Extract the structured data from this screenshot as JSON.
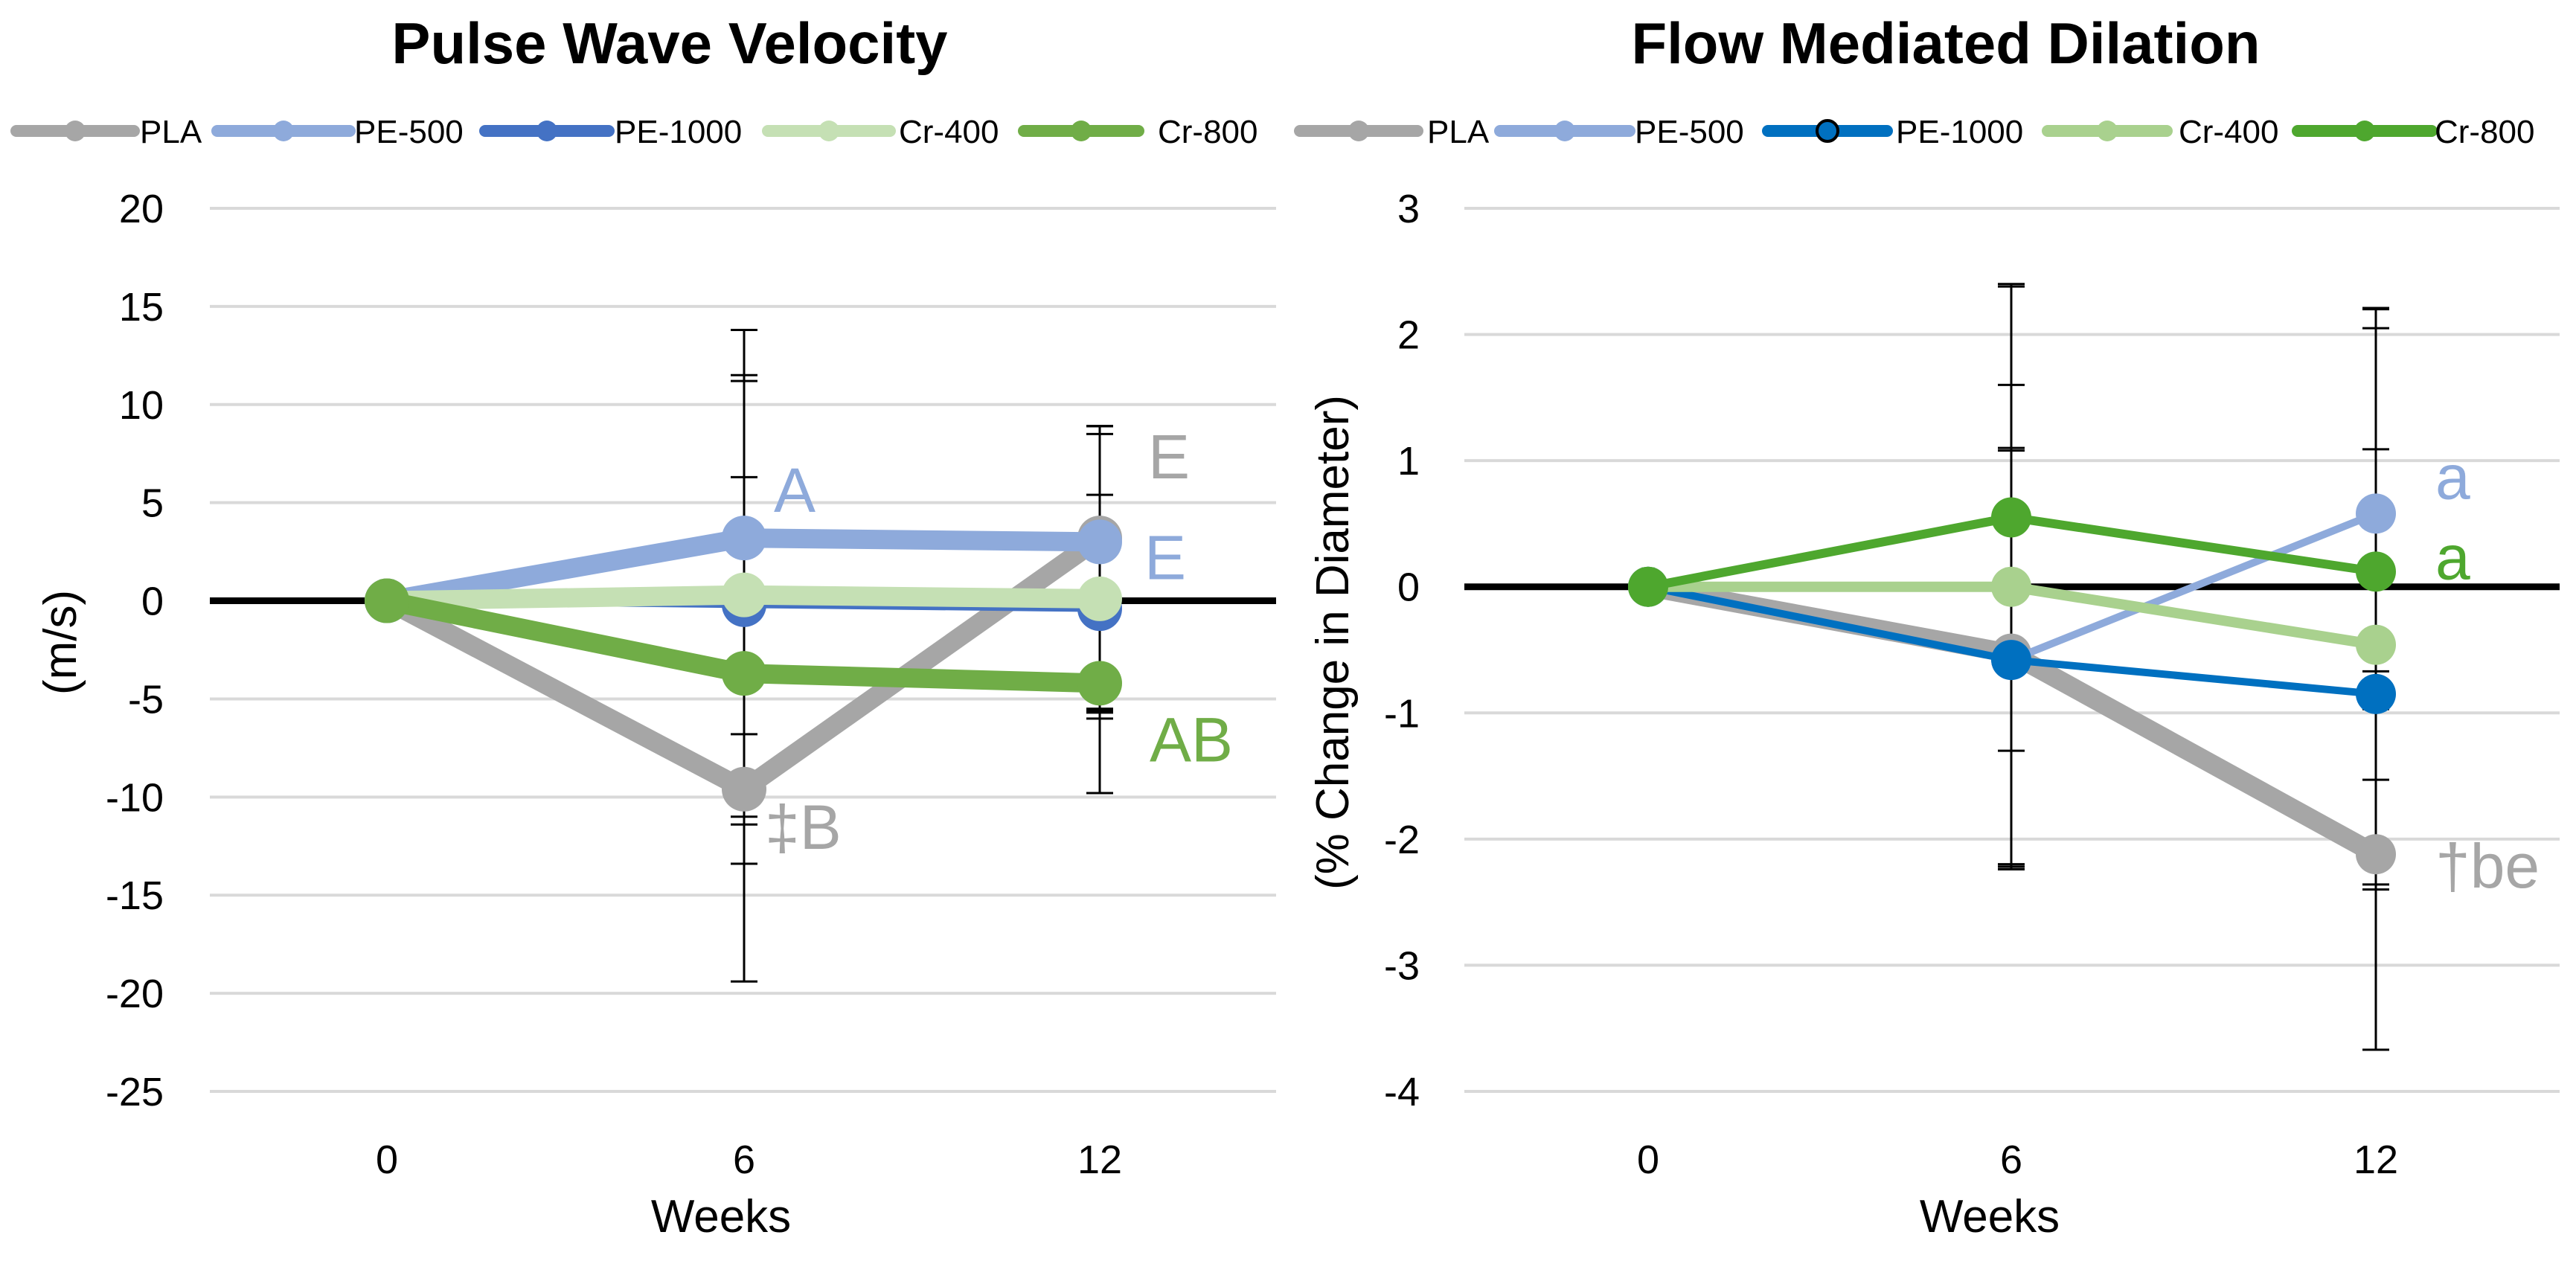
{
  "chart_data": [
    {
      "type": "line",
      "title": "Pulse Wave Velocity",
      "xlabel": "Weeks",
      "ylabel": "(m/s)",
      "categories": [
        "0",
        "6",
        "12"
      ],
      "ylim": [
        -25,
        20
      ],
      "yticks": [
        20,
        15,
        10,
        5,
        0,
        -5,
        -10,
        -15,
        -20,
        -25
      ],
      "grid": true,
      "legend_position": "top",
      "series": [
        {
          "name": "PLA",
          "color": "#a6a6a6",
          "values": [
            0,
            -9.6,
            3.2
          ],
          "err_up": [
            0,
            9.6,
            5.7
          ],
          "err_down": [
            0,
            9.8,
            8.9
          ]
        },
        {
          "name": "PE-500",
          "color": "#8eaadb",
          "values": [
            0,
            3.2,
            3.0
          ],
          "err_up": [
            0,
            10.6,
            5.5
          ],
          "err_down": [
            0,
            10.0,
            8.5
          ]
        },
        {
          "name": "PE-1000",
          "color": "#4472c4",
          "values": [
            0,
            -0.2,
            -0.4
          ],
          "err_up": [
            0,
            11.4,
            9.3
          ],
          "err_down": [
            0,
            11.2,
            5.6
          ]
        },
        {
          "name": "Cr-400",
          "color": "#c5e0b4",
          "values": [
            0,
            0.3,
            0.1
          ],
          "err_up": [
            0,
            11.2,
            8.8
          ],
          "err_down": [
            0,
            11.3,
            5.7
          ]
        },
        {
          "name": "Cr-800",
          "color": "#70ad47",
          "values": [
            0,
            -3.7,
            -4.2
          ],
          "err_up": [
            0,
            10.0,
            9.6
          ],
          "err_down": [
            0,
            9.7,
            5.6
          ]
        }
      ],
      "annotations": [
        {
          "text": "A",
          "series": "PE-500",
          "color": "#8eaadb"
        },
        {
          "text": "‡B",
          "series": "PLA",
          "color": "#a6a6a6"
        },
        {
          "text": "E",
          "series": "PLA",
          "color": "#a6a6a6"
        },
        {
          "text": "E",
          "series": "PE-500",
          "color": "#8eaadb"
        },
        {
          "text": "AB",
          "series": "Cr-800",
          "color": "#70ad47"
        }
      ]
    },
    {
      "type": "line",
      "title": "Flow Mediated Dilation",
      "xlabel": "Weeks",
      "ylabel": "(% Change in Diameter)",
      "categories": [
        "0",
        "6",
        "12"
      ],
      "ylim": [
        -4,
        3
      ],
      "yticks": [
        3,
        2,
        1,
        0,
        -1,
        -2,
        -3,
        -4
      ],
      "grid": true,
      "legend_position": "top",
      "series": [
        {
          "name": "PLA",
          "color": "#a6a6a6",
          "values": [
            0,
            -0.53,
            -2.12
          ],
          "err_up": [
            0,
            1.63,
            1.45
          ],
          "err_down": [
            0,
            1.67,
            1.55
          ]
        },
        {
          "name": "PE-500",
          "color": "#8eaadb",
          "values": [
            0,
            -0.58,
            0.58
          ],
          "err_up": [
            0,
            1.66,
            1.63
          ],
          "err_down": [
            0,
            1.64,
            1.55
          ]
        },
        {
          "name": "PE-1000",
          "color": "#0070c0",
          "values": [
            0,
            -0.58,
            -0.85
          ],
          "err_up": [
            0,
            2.96,
            3.05
          ],
          "err_down": [
            0,
            1.66,
            1.55
          ]
        },
        {
          "name": "Cr-400",
          "color": "#a9d18e",
          "values": [
            0,
            0.0,
            -0.46
          ],
          "err_up": [
            0,
            1.6,
            1.55
          ],
          "err_down": [
            0,
            2.2,
            1.9
          ]
        },
        {
          "name": "Cr-800",
          "color": "#4ea72e",
          "values": [
            0,
            0.55,
            0.12
          ],
          "err_up": [
            0,
            1.85,
            1.93
          ],
          "err_down": [
            0,
            1.85,
            1.65
          ]
        }
      ],
      "annotations": [
        {
          "text": "a",
          "series": "PE-500",
          "color": "#8eaadb"
        },
        {
          "text": "a",
          "series": "Cr-800",
          "color": "#4ea72e"
        },
        {
          "text": "†be",
          "series": "PLA",
          "color": "#a6a6a6"
        }
      ]
    }
  ]
}
